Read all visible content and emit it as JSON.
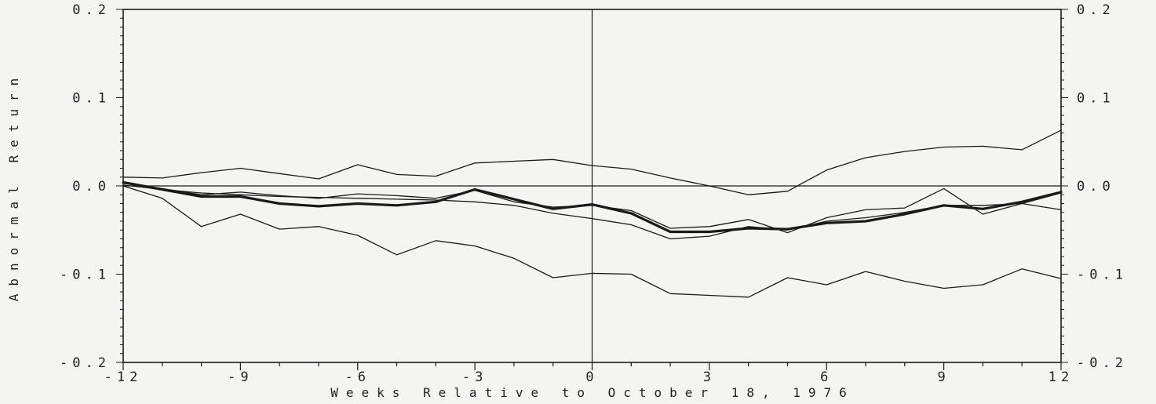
{
  "chart_data": {
    "type": "line",
    "title": "",
    "xlabel": "Weeks Relative to October 18, 1976",
    "ylabel": "Abnormal Return",
    "xlim": [
      -12,
      12
    ],
    "ylim": [
      -0.2,
      0.2
    ],
    "x_ticks": [
      -12,
      -9,
      -6,
      -3,
      0,
      3,
      6,
      9,
      12
    ],
    "x_tick_labels": [
      "-12",
      "-9",
      "-6",
      "-3",
      "0",
      "3",
      "6",
      "9",
      "12"
    ],
    "y_ticks": [
      -0.2,
      -0.1,
      0.0,
      0.1,
      0.2
    ],
    "y_tick_labels": [
      "-0.2",
      "-0.1",
      "0.0",
      "0.1",
      "0.2"
    ],
    "reference_lines": {
      "x": 0,
      "y": 0
    },
    "grid": false,
    "legend": "none",
    "x": [
      -12,
      -11,
      -10,
      -9,
      -8,
      -7,
      -6,
      -5,
      -4,
      -3,
      -2,
      -1,
      0,
      1,
      2,
      3,
      4,
      5,
      6,
      7,
      8,
      9,
      10,
      11,
      12
    ],
    "series": [
      {
        "style": "thin",
        "values": [
          0.01,
          0.009,
          0.015,
          0.02,
          0.014,
          0.008,
          0.024,
          0.013,
          0.011,
          0.026,
          0.028,
          0.03,
          0.023,
          0.019,
          0.009,
          0.0,
          -0.01,
          -0.006,
          0.018,
          0.032,
          0.039,
          0.044,
          0.045,
          0.041,
          0.063
        ]
      },
      {
        "style": "bold",
        "values": [
          0.004,
          -0.004,
          -0.012,
          -0.012,
          -0.02,
          -0.023,
          -0.02,
          -0.022,
          -0.018,
          -0.004,
          -0.015,
          -0.026,
          -0.021,
          -0.031,
          -0.052,
          -0.052,
          -0.048,
          -0.049,
          -0.042,
          -0.04,
          -0.032,
          -0.022,
          -0.026,
          -0.018,
          -0.007
        ]
      },
      {
        "style": "thin",
        "values": [
          0.003,
          -0.003,
          -0.01,
          -0.007,
          -0.011,
          -0.014,
          -0.009,
          -0.011,
          -0.014,
          -0.005,
          -0.018,
          -0.024,
          -0.022,
          -0.028,
          -0.048,
          -0.046,
          -0.038,
          -0.053,
          -0.036,
          -0.027,
          -0.025,
          -0.003,
          -0.032,
          -0.02,
          -0.008
        ]
      },
      {
        "style": "thin",
        "values": [
          0.001,
          -0.004,
          -0.008,
          -0.01,
          -0.012,
          -0.013,
          -0.014,
          -0.015,
          -0.016,
          -0.018,
          -0.022,
          -0.031,
          -0.037,
          -0.044,
          -0.06,
          -0.057,
          -0.046,
          -0.05,
          -0.04,
          -0.036,
          -0.03,
          -0.022,
          -0.022,
          -0.02,
          -0.027
        ]
      },
      {
        "style": "thin",
        "values": [
          0.0,
          -0.014,
          -0.046,
          -0.032,
          -0.049,
          -0.046,
          -0.056,
          -0.078,
          -0.062,
          -0.068,
          -0.082,
          -0.104,
          -0.099,
          -0.1,
          -0.122,
          -0.124,
          -0.126,
          -0.104,
          -0.112,
          -0.097,
          -0.108,
          -0.116,
          -0.112,
          -0.094,
          -0.105
        ]
      }
    ]
  }
}
